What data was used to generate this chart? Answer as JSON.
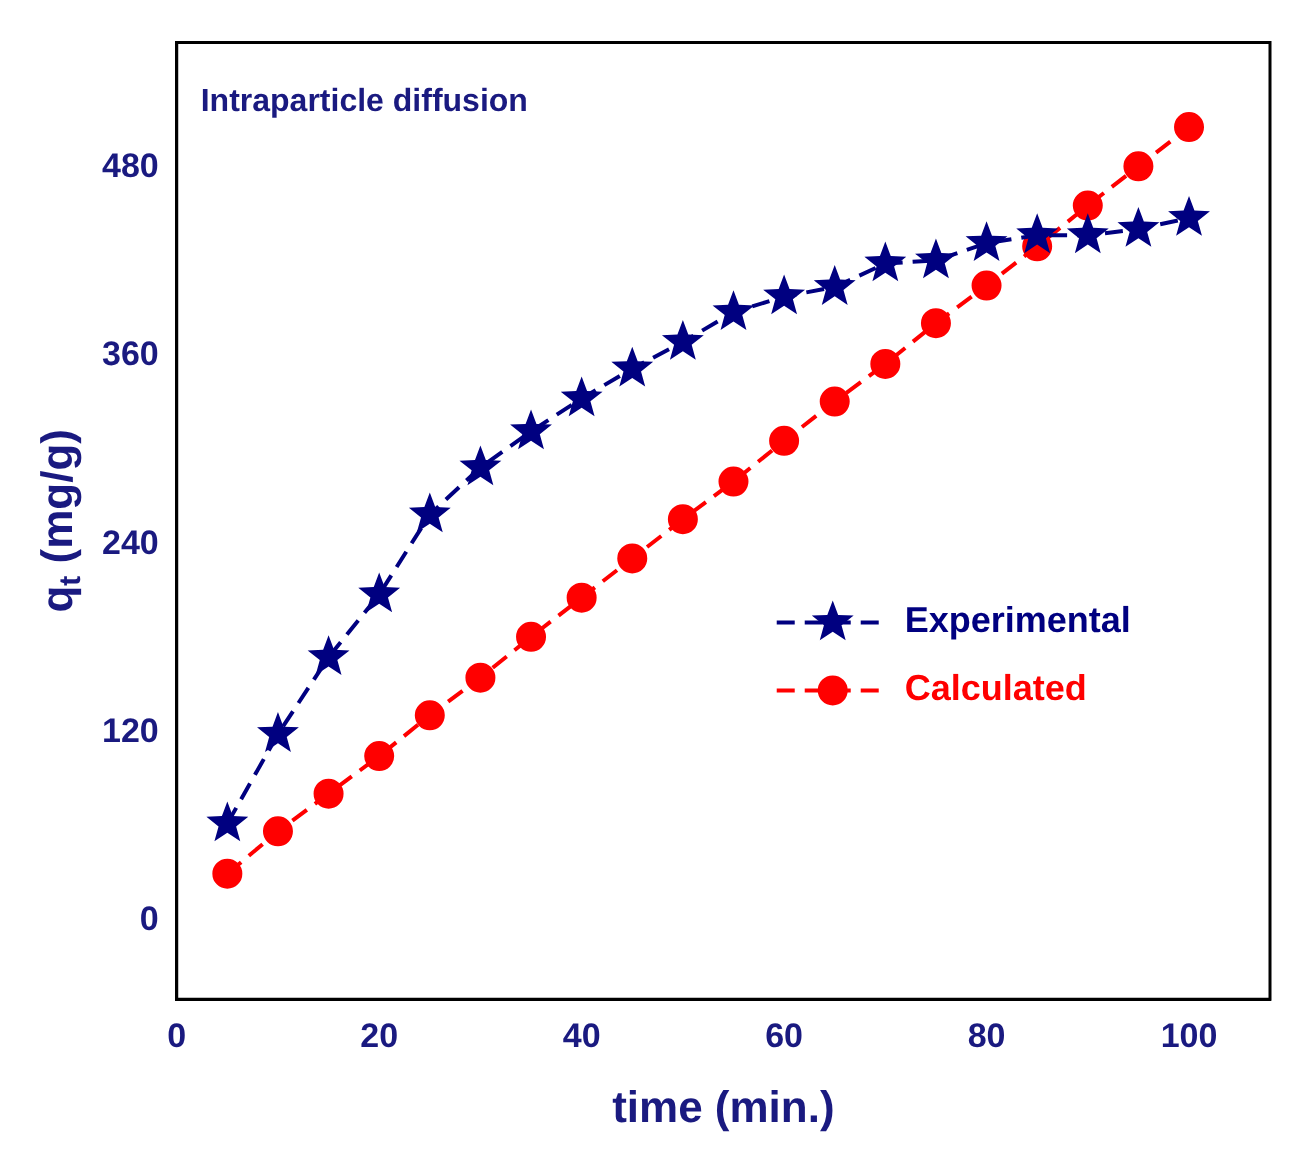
{
  "chart_data": {
    "type": "line",
    "xlabel": "time (min.)",
    "ylabel": "q$_{t}$ (mg/g)",
    "annotations": [
      "Intraparticle diffusion"
    ],
    "x": [
      5,
      10,
      15,
      20,
      25,
      30,
      35,
      40,
      45,
      50,
      55,
      60,
      65,
      70,
      75,
      80,
      85,
      90,
      95,
      100
    ],
    "series": [
      {
        "name": "Experimental",
        "color": "#000080",
        "marker": "star",
        "line_style": "dashed",
        "values": [
          62,
          119,
          168,
          208,
          259,
          289,
          312,
          333,
          352,
          369,
          388,
          398,
          404,
          419,
          421,
          432,
          437,
          437,
          441,
          448
        ]
      },
      {
        "name": "Calculated",
        "color": "#ff0000",
        "marker": "circle",
        "line_style": "dashed",
        "values": [
          30,
          57,
          81,
          105,
          131,
          155,
          181,
          206,
          231,
          256,
          280,
          306,
          331,
          355,
          381,
          405,
          430,
          456,
          481,
          506
        ]
      }
    ],
    "xlim": [
      0,
      108
    ],
    "xticks": [
      0,
      20,
      40,
      60,
      80,
      100
    ],
    "ylim": [
      -50,
      560
    ],
    "yticks": [
      0,
      120,
      240,
      360,
      480
    ],
    "grid": false,
    "legend": "right"
  }
}
